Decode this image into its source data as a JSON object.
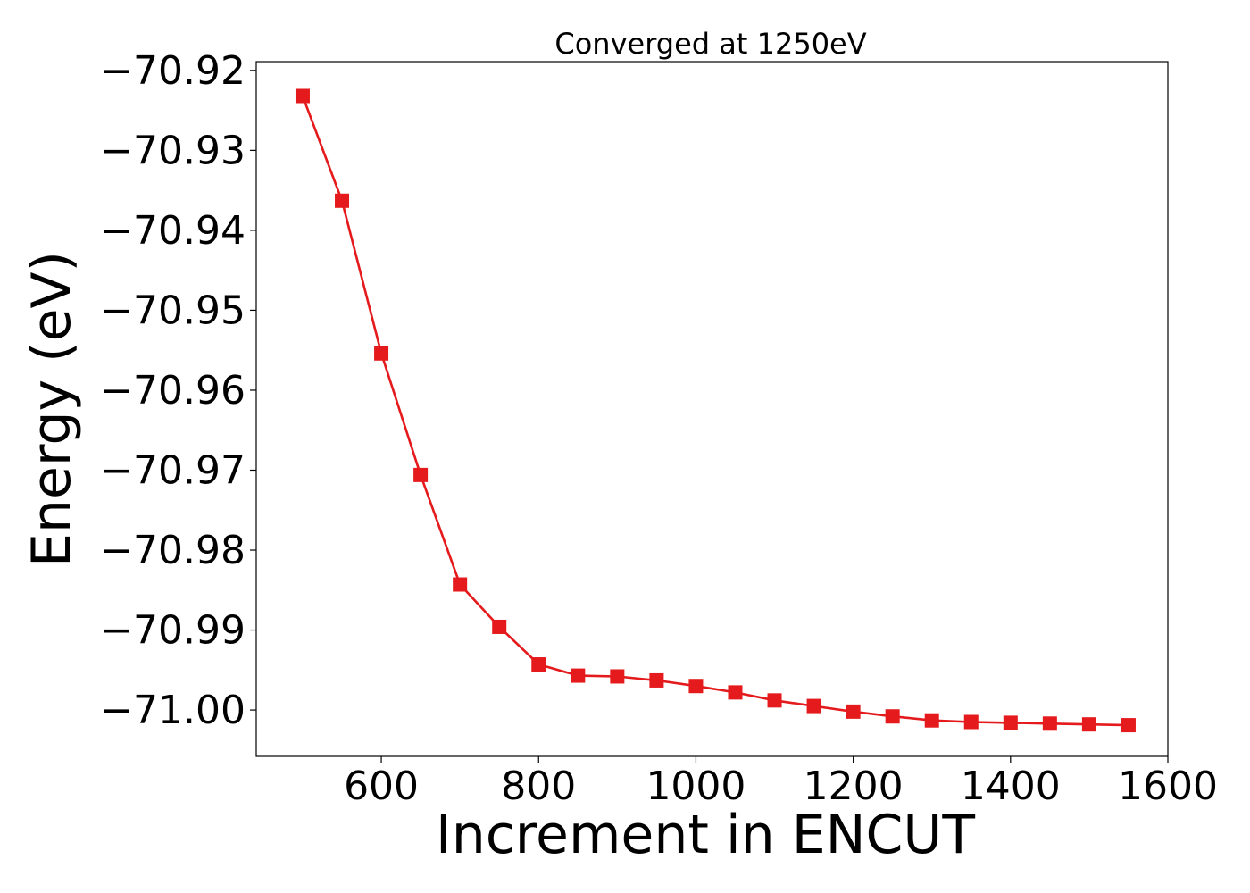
{
  "chart_data": {
    "type": "line",
    "title": "Converged at 1250eV",
    "xlabel": "Increment in ENCUT",
    "ylabel": "Energy (eV)",
    "xlim": [
      441,
      1600
    ],
    "ylim": [
      -71.0058,
      -70.9189
    ],
    "x_ticks": [
      600,
      800,
      1000,
      1200,
      1400,
      1600
    ],
    "x_tick_labels": [
      "600",
      "800",
      "1000",
      "1200",
      "1400",
      "1600"
    ],
    "y_ticks": [
      -70.92,
      -70.93,
      -70.94,
      -70.95,
      -70.96,
      -70.97,
      -70.98,
      -70.99,
      -71.0
    ],
    "y_tick_labels": [
      "−70.92",
      "−70.93",
      "−70.94",
      "−70.95",
      "−70.96",
      "−70.97",
      "−70.98",
      "−70.99",
      "−71.00"
    ],
    "grid": false,
    "series": [
      {
        "color": "#e41a1c",
        "marker": "square",
        "x": [
          500,
          550,
          600,
          650,
          700,
          750,
          800,
          850,
          900,
          950,
          1000,
          1050,
          1100,
          1150,
          1200,
          1250,
          1300,
          1350,
          1400,
          1450,
          1500,
          1550
        ],
        "y": [
          -70.9232,
          -70.9363,
          -70.9554,
          -70.9706,
          -70.9843,
          -70.9896,
          -70.9943,
          -70.9957,
          -70.9958,
          -70.9963,
          -70.997,
          -70.9978,
          -70.9988,
          -70.9995,
          -71.0002,
          -71.0008,
          -71.0013,
          -71.0015,
          -71.0016,
          -71.0017,
          -71.0018,
          -71.0019
        ]
      }
    ]
  }
}
